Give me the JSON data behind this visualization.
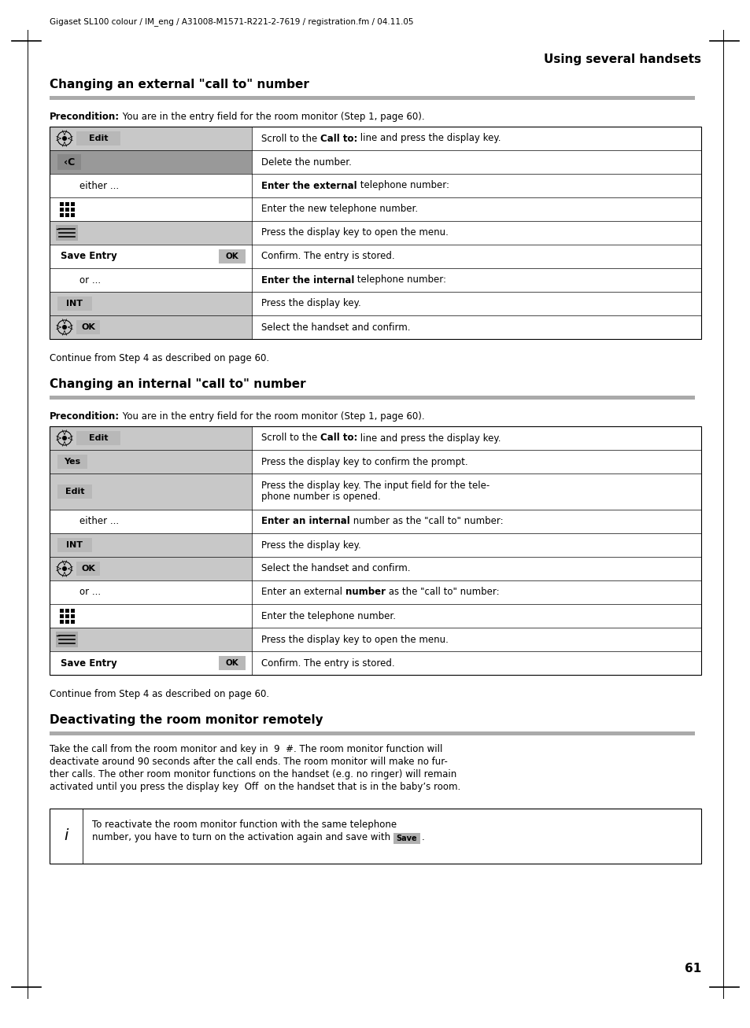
{
  "page_width": 9.54,
  "page_height": 13.07,
  "bg_color": "#ffffff",
  "header_text": "Gigaset SL100 colour / IM_eng / A31008-M1571-R221-2-7619 / registration.fm / 04.11.05",
  "right_header": "Using several handsets",
  "section1_title": "Changing an external \"call to\" number",
  "section2_title": "Changing an internal \"call to\" number",
  "section3_title": "Deactivating the room monitor remotely",
  "page_number": "61",
  "continue_text": "Continue from Step 4 as described on page 60.",
  "table1_rows": [
    {
      "left_type": "icon_edit",
      "left_text": "Edit",
      "right_parts": [
        [
          "Scroll to the ",
          false
        ],
        [
          "Call to:",
          true
        ],
        [
          " line and press the display key.",
          false
        ]
      ]
    },
    {
      "left_type": "icon_c",
      "left_text": "‹C",
      "right_parts": [
        [
          "Delete the number.",
          false
        ]
      ]
    },
    {
      "left_type": "text_indent",
      "left_text": "either ...",
      "right_parts": [
        [
          "Enter the external",
          true
        ],
        [
          " telephone number:",
          false
        ]
      ]
    },
    {
      "left_type": "icon_keypad",
      "left_text": "",
      "right_parts": [
        [
          "Enter the new telephone number.",
          false
        ]
      ]
    },
    {
      "left_type": "icon_menu",
      "left_text": "",
      "right_parts": [
        [
          "Press the display key to open the menu.",
          false
        ]
      ]
    },
    {
      "left_type": "save_ok",
      "left_text": "Save Entry",
      "right_parts": [
        [
          "Confirm. The entry is stored.",
          false
        ]
      ]
    },
    {
      "left_type": "text_indent",
      "left_text": "or ...",
      "right_parts": [
        [
          "Enter the internal",
          true
        ],
        [
          " telephone number:",
          false
        ]
      ]
    },
    {
      "left_type": "icon_int",
      "left_text": "INT",
      "right_parts": [
        [
          "Press the display key.",
          false
        ]
      ]
    },
    {
      "left_type": "icon_ok",
      "left_text": "OK",
      "right_parts": [
        [
          "Select the handset and confirm.",
          false
        ]
      ]
    }
  ],
  "table2_rows": [
    {
      "left_type": "icon_edit",
      "left_text": "Edit",
      "right_parts": [
        [
          "Scroll to the ",
          false
        ],
        [
          "Call to:",
          true
        ],
        [
          " line and press the display key.",
          false
        ]
      ]
    },
    {
      "left_type": "icon_yes",
      "left_text": "Yes",
      "right_parts": [
        [
          "Press the display key to confirm the prompt.",
          false
        ]
      ]
    },
    {
      "left_type": "icon_edit2",
      "left_text": "Edit",
      "right_parts": [
        [
          "Press the display key. The input field for the tele-\nphone number is opened.",
          false
        ]
      ],
      "multi_line": true
    },
    {
      "left_type": "text_indent",
      "left_text": "either ...",
      "right_parts": [
        [
          "Enter an internal",
          true
        ],
        [
          " number as the \"call to\" number:",
          false
        ]
      ]
    },
    {
      "left_type": "icon_int",
      "left_text": "INT",
      "right_parts": [
        [
          "Press the display key.",
          false
        ]
      ]
    },
    {
      "left_type": "icon_ok",
      "left_text": "OK",
      "right_parts": [
        [
          "Select the handset and confirm.",
          false
        ]
      ]
    },
    {
      "left_type": "text_indent",
      "left_text": "or ...",
      "right_parts": [
        [
          "Enter an external ",
          false
        ],
        [
          "number",
          true
        ],
        [
          " as the \"call to\" number:",
          false
        ]
      ]
    },
    {
      "left_type": "icon_keypad",
      "left_text": "",
      "right_parts": [
        [
          "Enter the telephone number.",
          false
        ]
      ]
    },
    {
      "left_type": "icon_menu",
      "left_text": "",
      "right_parts": [
        [
          "Press the display key to open the menu.",
          false
        ]
      ]
    },
    {
      "left_type": "save_ok",
      "left_text": "Save Entry",
      "right_parts": [
        [
          "Confirm. The entry is stored.",
          false
        ]
      ]
    }
  ],
  "deactivate_lines": [
    "Take the call from the room monitor and key in  9  #. The room monitor function will",
    "deactivate around 90 seconds after the call ends. The room monitor will make no fur-",
    "ther calls. The other room monitor functions on the handset (e.g. no ringer) will remain",
    "activated until you press the display key  Off  on the handset that is in the baby’s room."
  ],
  "info_line1": "To reactivate the room monitor function with the same telephone",
  "info_line2": "number, you have to turn on the activation again and save with"
}
